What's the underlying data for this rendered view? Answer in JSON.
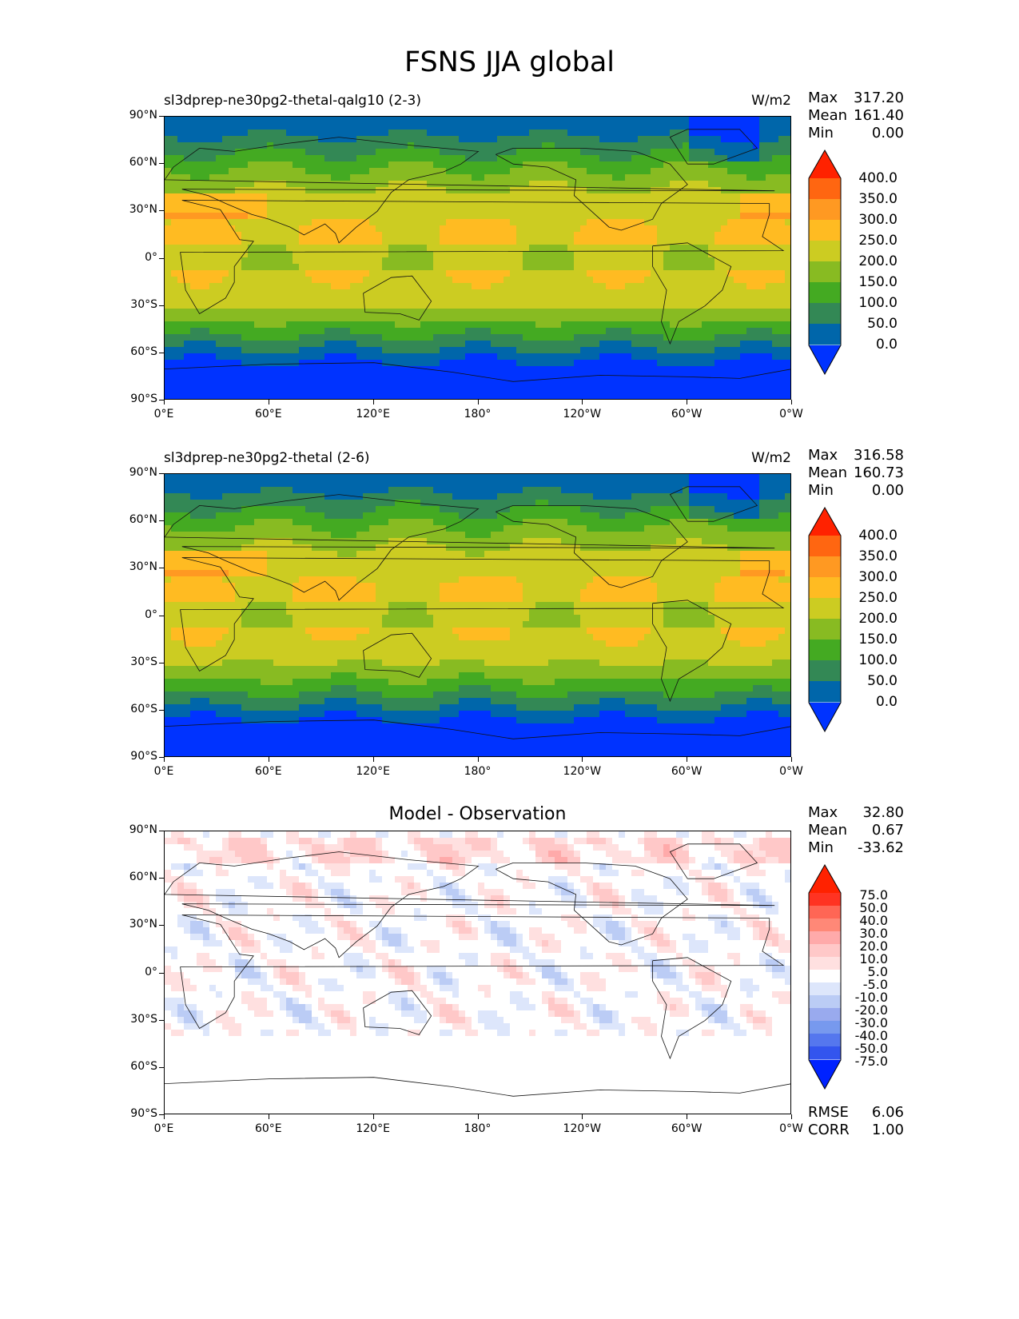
{
  "figure": {
    "title": "FSNS JJA global"
  },
  "panels": [
    {
      "title_left": "sl3dprep-ne30pg2-thetal-qalg10 (2-3)",
      "title_right": "W/m2",
      "stats": {
        "max_label": "Max",
        "max": "317.20",
        "mean_label": "Mean",
        "mean": "161.40",
        "min_label": "Min",
        "min": "0.00"
      },
      "colorbar": {
        "ticks": [
          "400.0",
          "350.0",
          "300.0",
          "250.0",
          "200.0",
          "150.0",
          "100.0",
          "50.0",
          "0.0"
        ]
      }
    },
    {
      "title_left": "sl3dprep-ne30pg2-thetal (2-6)",
      "title_right": "W/m2",
      "stats": {
        "max_label": "Max",
        "max": "316.58",
        "mean_label": "Mean",
        "mean": "160.73",
        "min_label": "Min",
        "min": "0.00"
      },
      "colorbar": {
        "ticks": [
          "400.0",
          "350.0",
          "300.0",
          "250.0",
          "200.0",
          "150.0",
          "100.0",
          "50.0",
          "0.0"
        ]
      }
    },
    {
      "title_center": "Model - Observation",
      "stats": {
        "max_label": "Max",
        "max": "32.80",
        "mean_label": "Mean",
        "mean": "0.67",
        "min_label": "Min",
        "min": "-33.62"
      },
      "colorbar": {
        "ticks": [
          "75.0",
          "50.0",
          "40.0",
          "30.0",
          "20.0",
          "10.0",
          "5.0",
          "-5.0",
          "-10.0",
          "-20.0",
          "-30.0",
          "-40.0",
          "-50.0",
          "-75.0"
        ]
      },
      "metrics": {
        "rmse_label": "RMSE",
        "rmse": "6.06",
        "corr_label": "CORR",
        "corr": "1.00"
      }
    }
  ],
  "axes": {
    "y_ticks": [
      "90°N",
      "60°N",
      "30°N",
      "0°",
      "30°S",
      "60°S",
      "90°S"
    ],
    "x_ticks": [
      "0°E",
      "60°E",
      "120°E",
      "180°",
      "120°W",
      "60°W",
      "0°W"
    ]
  },
  "colors": {
    "abs_levels": [
      "#0033ff",
      "#0066aa",
      "#338855",
      "#44aa22",
      "#88bb22",
      "#cccc22",
      "#ffbb22",
      "#ff9922",
      "#ff6611",
      "#ff2200"
    ],
    "diff_levels": [
      "#0022ff",
      "#3355ee",
      "#5577ee",
      "#7799ee",
      "#99aaee",
      "#bbccf5",
      "#dde6fb",
      "#ffffff",
      "#ffe0e0",
      "#ffc8c8",
      "#ffaaaa",
      "#ff8877",
      "#ff6655",
      "#ff3322",
      "#ff2200"
    ]
  },
  "chart_data": [
    {
      "type": "heatmap",
      "title": "sl3dprep-ne30pg2-thetal-qalg10 (2-3)",
      "units": "W/m2",
      "xlabel": "",
      "ylabel": "",
      "xlim": [
        0,
        360
      ],
      "ylim": [
        -90,
        90
      ],
      "levels": [
        0,
        50,
        100,
        150,
        200,
        250,
        300,
        350,
        400
      ],
      "max": 317.2,
      "mean": 161.4,
      "min": 0.0
    },
    {
      "type": "heatmap",
      "title": "sl3dprep-ne30pg2-thetal (2-6)",
      "units": "W/m2",
      "xlabel": "",
      "ylabel": "",
      "xlim": [
        0,
        360
      ],
      "ylim": [
        -90,
        90
      ],
      "levels": [
        0,
        50,
        100,
        150,
        200,
        250,
        300,
        350,
        400
      ],
      "max": 316.58,
      "mean": 160.73,
      "min": 0.0
    },
    {
      "type": "heatmap",
      "title": "Model - Observation",
      "xlabel": "",
      "ylabel": "",
      "xlim": [
        0,
        360
      ],
      "ylim": [
        -90,
        90
      ],
      "levels": [
        -75,
        -50,
        -40,
        -30,
        -20,
        -10,
        -5,
        5,
        10,
        20,
        30,
        40,
        50,
        75
      ],
      "max": 32.8,
      "mean": 0.67,
      "min": -33.62,
      "rmse": 6.06,
      "corr": 1.0
    }
  ]
}
